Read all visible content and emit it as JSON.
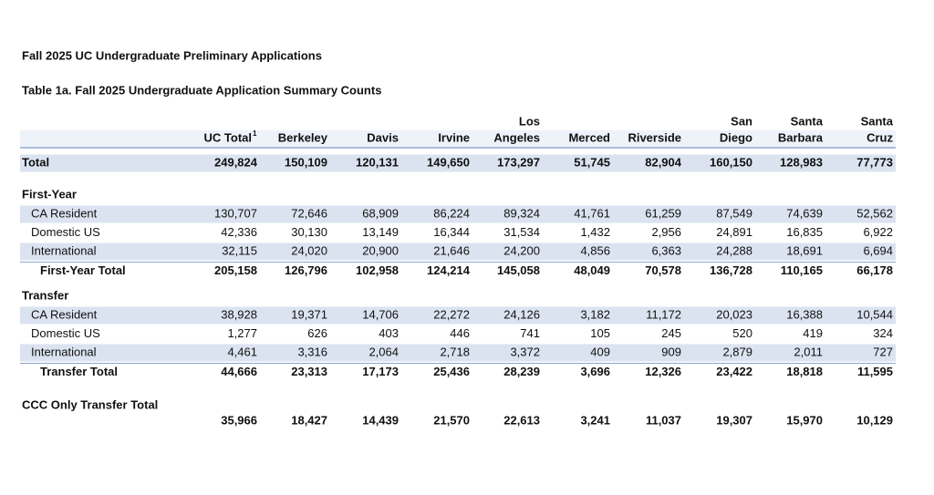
{
  "header": {
    "title": "Fall 2025 UC Undergraduate Preliminary Applications",
    "subtitle": "Table 1a. Fall 2025 Undergraduate Application Summary Counts"
  },
  "table": {
    "columns": [
      [
        "UC Total"
      ],
      [
        "Berkeley"
      ],
      [
        "Davis"
      ],
      [
        "Irvine"
      ],
      [
        "Los",
        "Angeles"
      ],
      [
        "Merced"
      ],
      [
        "Riverside"
      ],
      [
        "San",
        "Diego"
      ],
      [
        "Santa",
        "Barbara"
      ],
      [
        "Santa",
        "Cruz"
      ]
    ],
    "footnote_mark": "1",
    "total": {
      "label": "Total",
      "values": [
        "249,824",
        "150,109",
        "120,131",
        "149,650",
        "173,297",
        "51,745",
        "82,904",
        "160,150",
        "128,983",
        "77,773"
      ]
    },
    "sections": [
      {
        "title": "First-Year",
        "rows": [
          {
            "label": "CA Resident",
            "values": [
              "130,707",
              "72,646",
              "68,909",
              "86,224",
              "89,324",
              "41,761",
              "61,259",
              "87,549",
              "74,639",
              "52,562"
            ]
          },
          {
            "label": "Domestic US",
            "values": [
              "42,336",
              "30,130",
              "13,149",
              "16,344",
              "31,534",
              "1,432",
              "2,956",
              "24,891",
              "16,835",
              "6,922"
            ]
          },
          {
            "label": "International",
            "values": [
              "32,115",
              "24,020",
              "20,900",
              "21,646",
              "24,200",
              "4,856",
              "6,363",
              "24,288",
              "18,691",
              "6,694"
            ]
          }
        ],
        "total": {
          "label": "First-Year Total",
          "values": [
            "205,158",
            "126,796",
            "102,958",
            "124,214",
            "145,058",
            "48,049",
            "70,578",
            "136,728",
            "110,165",
            "66,178"
          ]
        }
      },
      {
        "title": "Transfer",
        "rows": [
          {
            "label": "CA Resident",
            "values": [
              "38,928",
              "19,371",
              "14,706",
              "22,272",
              "24,126",
              "3,182",
              "11,172",
              "20,023",
              "16,388",
              "10,544"
            ]
          },
          {
            "label": "Domestic US",
            "values": [
              "1,277",
              "626",
              "403",
              "446",
              "741",
              "105",
              "245",
              "520",
              "419",
              "324"
            ]
          },
          {
            "label": "International",
            "values": [
              "4,461",
              "3,316",
              "2,064",
              "2,718",
              "3,372",
              "409",
              "909",
              "2,879",
              "2,011",
              "727"
            ]
          }
        ],
        "total": {
          "label": "Transfer Total",
          "values": [
            "44,666",
            "23,313",
            "17,173",
            "25,436",
            "28,239",
            "3,696",
            "12,326",
            "23,422",
            "18,818",
            "11,595"
          ]
        }
      }
    ],
    "ccc": {
      "label": "CCC Only Transfer Total",
      "values": [
        "35,966",
        "18,427",
        "14,439",
        "21,570",
        "22,613",
        "3,241",
        "11,037",
        "19,307",
        "15,970",
        "10,129"
      ]
    }
  }
}
